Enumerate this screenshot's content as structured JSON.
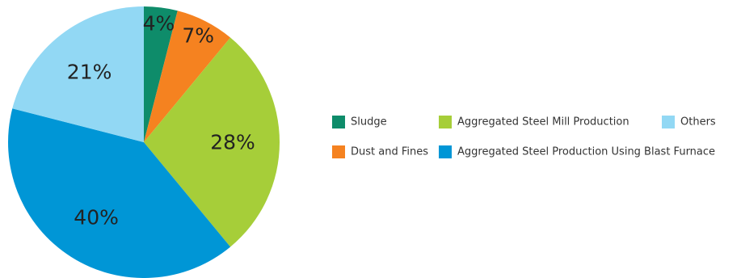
{
  "chart_data": {
    "type": "pie",
    "start_angle_deg": 0,
    "direction": "clockwise",
    "slices": [
      {
        "name": "Sludge",
        "value": 4,
        "label": "4%",
        "color": "#0E8C6A"
      },
      {
        "name": "Dust and Fines",
        "value": 7,
        "label": "7%",
        "color": "#F58220"
      },
      {
        "name": "Aggregated Steel Mill Production",
        "value": 28,
        "label": "28%",
        "color": "#A6CE39"
      },
      {
        "name": "Aggregated Steel Production Using Blast Furnace",
        "value": 40,
        "label": "40%",
        "color": "#0096D6"
      },
      {
        "name": "Others",
        "value": 21,
        "label": "21%",
        "color": "#92D8F4"
      }
    ],
    "legend_placement": "right"
  }
}
